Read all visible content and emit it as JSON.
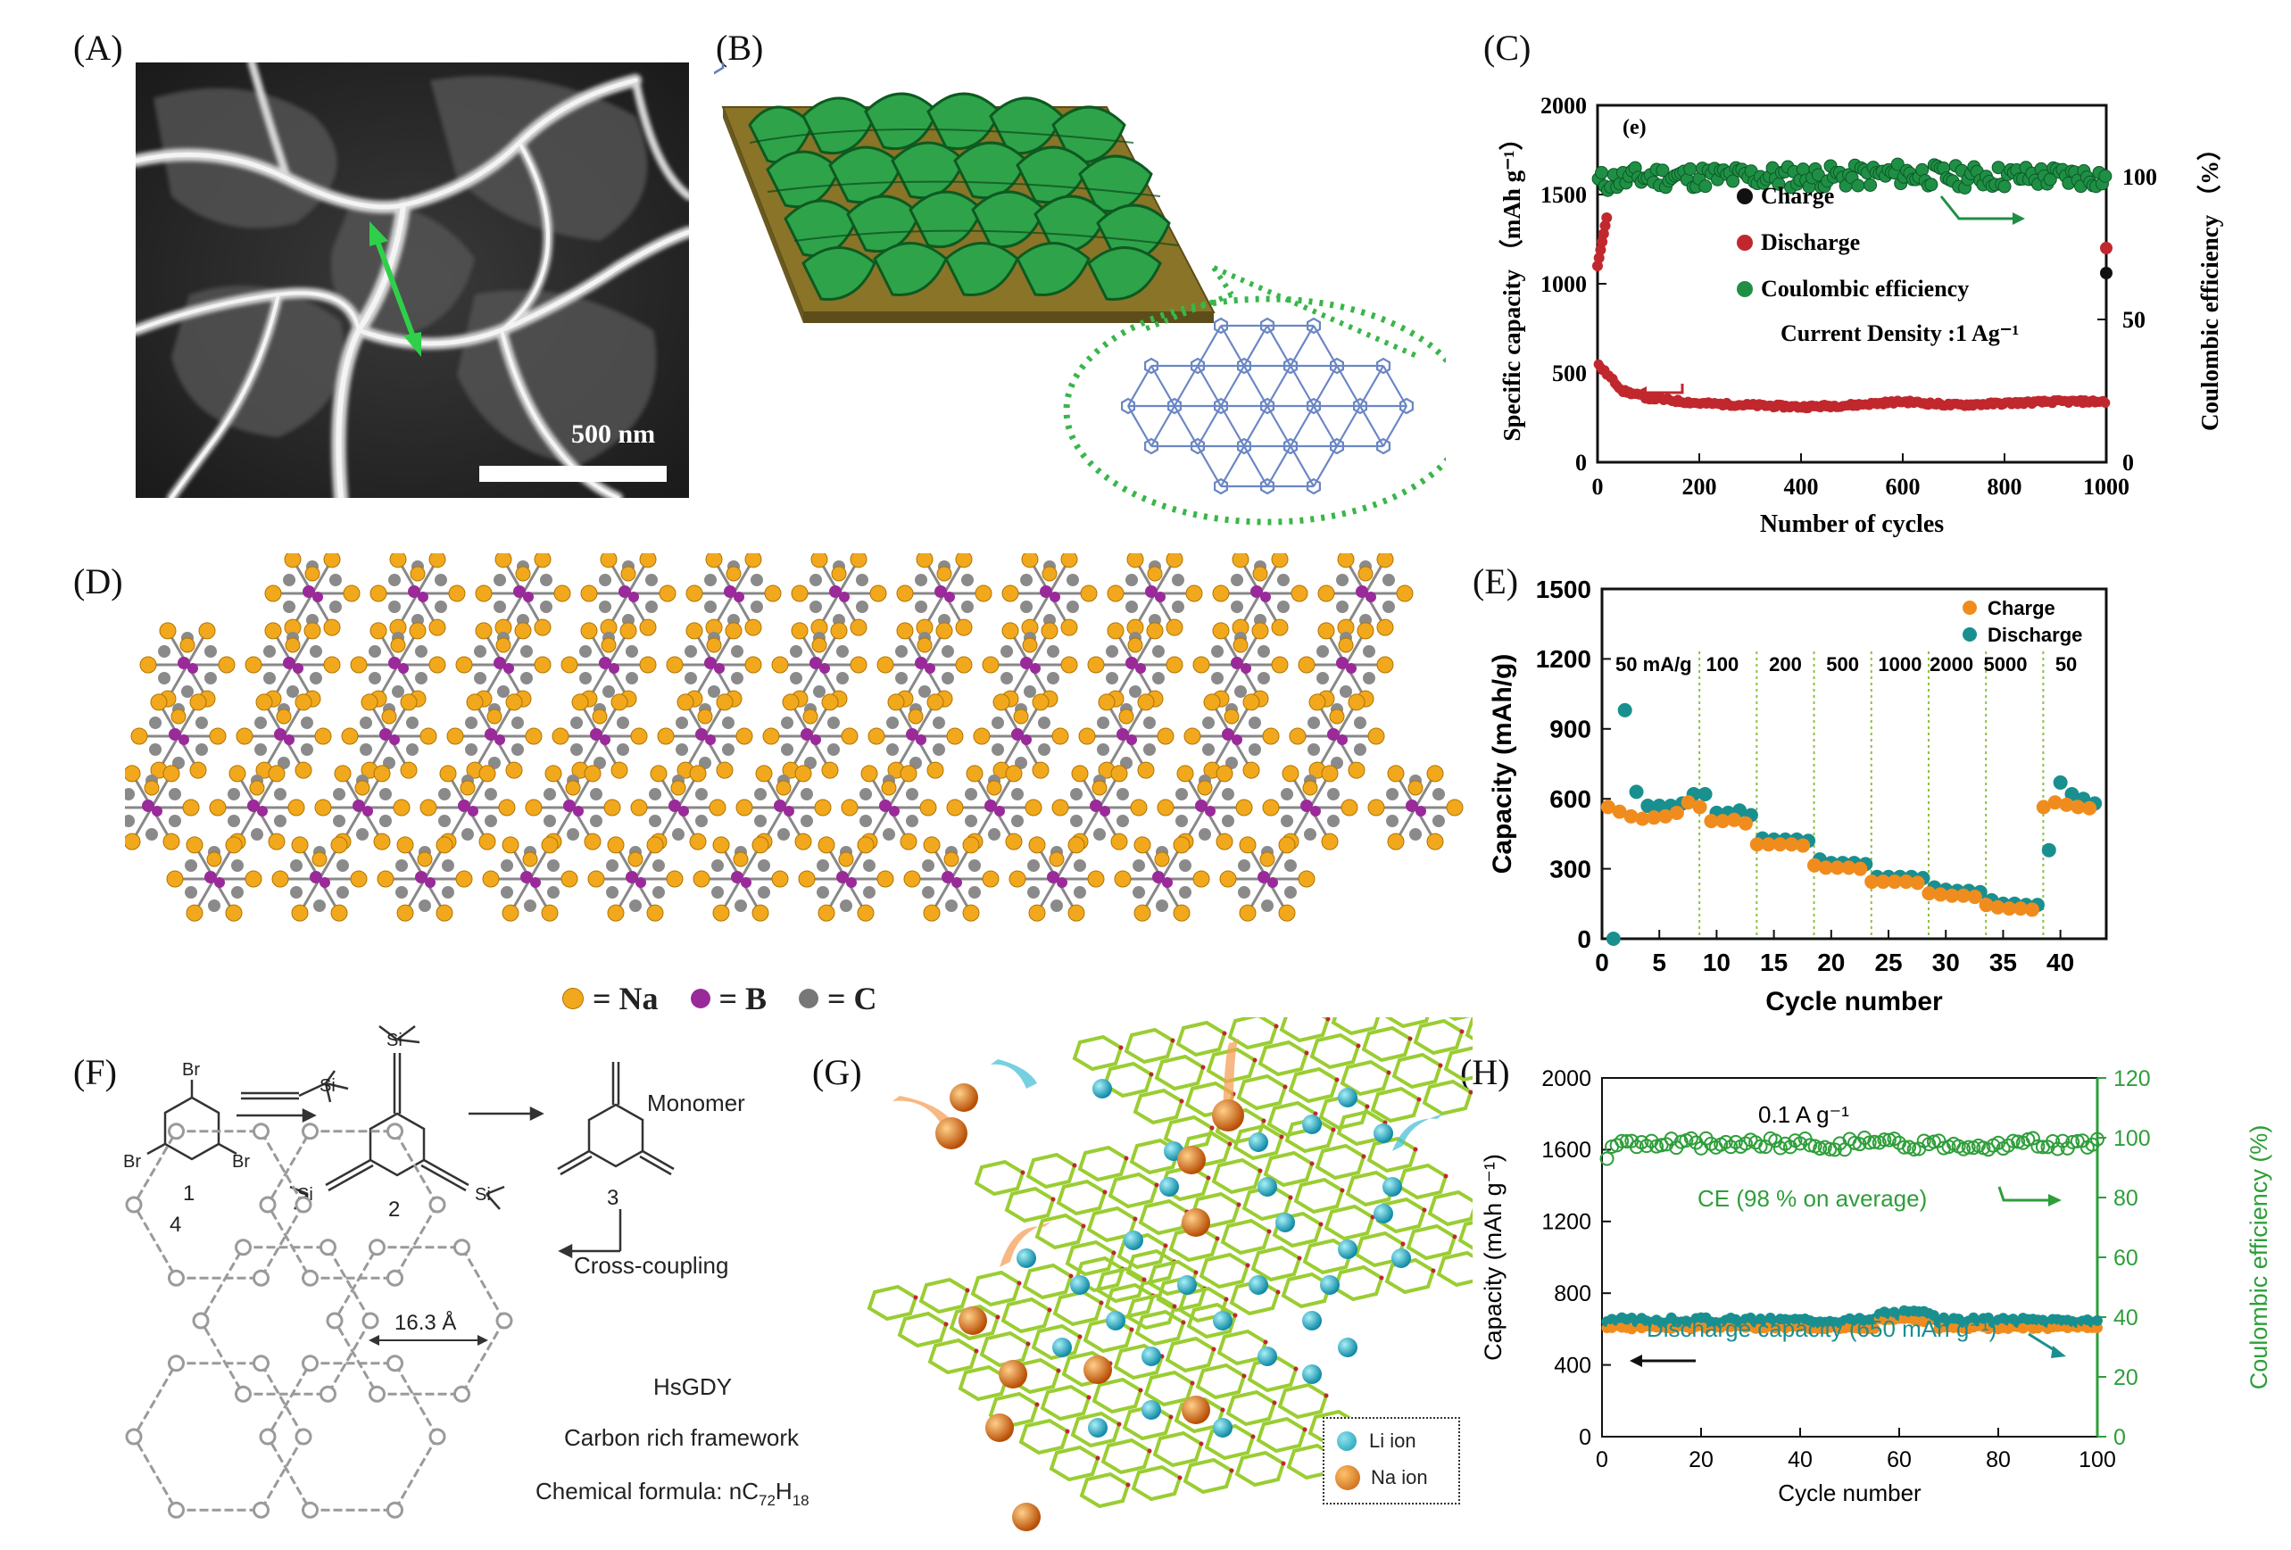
{
  "panels": {
    "A": {
      "label": "(A)",
      "scale_bar": "500 nm"
    },
    "B": {
      "label": "(B)"
    },
    "C": {
      "label": "(C)"
    },
    "D": {
      "label": "(D)",
      "legend": [
        "= Na",
        "= B",
        "= C"
      ]
    },
    "E": {
      "label": "(E)"
    },
    "F": {
      "label": "(F)",
      "labels": {
        "n1": "1",
        "n2": "2",
        "n3": "3",
        "n4": "4",
        "monomer": "Monomer",
        "cross": "Cross-coupling",
        "pore": "16.3 Å",
        "name": "HsGDY",
        "framework": "Carbon rich framework",
        "formula_prefix": "Chemical formula: nC",
        "c_sub": "72",
        "h": "H",
        "h_sub": "18",
        "br": "Br",
        "si": "Si"
      }
    },
    "G": {
      "label": "(G)",
      "legend": [
        "Li ion",
        "Na ion"
      ]
    },
    "H": {
      "label": "(H)"
    }
  },
  "colors": {
    "green_dark": "#1e8a3e",
    "red": "#c0282e",
    "black": "#111111",
    "orange": "#f08c1e",
    "teal": "#1a8f8f",
    "ce_green": "#2e9e3a",
    "gold": "#f2a81d",
    "purple": "#9a2a9a",
    "grey": "#777777"
  },
  "chart_data": [
    {
      "id": "C",
      "type": "scatter",
      "tag": "(e)",
      "xlabel": "Number of cycles",
      "ylabel": "Specific capacity （mAh g⁻¹）",
      "y2label": "Coulombic efficiency （%）",
      "xlim": [
        0,
        1000
      ],
      "ylim": [
        0,
        2000
      ],
      "y2lim": [
        0,
        125
      ],
      "xticks": [
        0,
        200,
        400,
        600,
        800,
        1000
      ],
      "yticks": [
        0,
        500,
        1000,
        1500,
        2000
      ],
      "y2ticks": [
        0,
        50,
        100
      ],
      "legend": [
        "Charge",
        "Discharge",
        "Coulombic efficiency"
      ],
      "annotation": "Current Density :1 Ag⁻¹",
      "series": [
        {
          "name": "Charge",
          "axis": "left",
          "x": [
            0,
            50,
            100,
            200,
            300,
            400,
            500,
            600,
            700,
            800,
            900,
            1000
          ],
          "y": [
            500,
            390,
            350,
            320,
            310,
            300,
            310,
            330,
            310,
            320,
            330,
            330
          ]
        },
        {
          "name": "Discharge",
          "axis": "left",
          "x": [
            0,
            50,
            100,
            200,
            300,
            400,
            500,
            600,
            700,
            800,
            900,
            1000
          ],
          "y": [
            550,
            400,
            360,
            330,
            320,
            310,
            320,
            340,
            320,
            330,
            340,
            340
          ]
        },
        {
          "name": "Coulombic efficiency",
          "axis": "right",
          "x": [
            0,
            50,
            100,
            200,
            300,
            400,
            500,
            600,
            700,
            800,
            900,
            1000
          ],
          "y": [
            98,
            99,
            100,
            100,
            100,
            100,
            100,
            101,
            100,
            100,
            100,
            100
          ]
        }
      ]
    },
    {
      "id": "E",
      "type": "scatter",
      "xlabel": "Cycle  number",
      "ylabel": "Capacity (mAh/g)",
      "xlim": [
        0,
        44
      ],
      "ylim": [
        0,
        1500
      ],
      "xticks": [
        0,
        5,
        10,
        15,
        20,
        25,
        30,
        35,
        40
      ],
      "yticks": [
        0,
        300,
        600,
        900,
        1200,
        1500
      ],
      "rate_labels": [
        "50 mA/g",
        "100",
        "200",
        "500",
        "1000",
        "2000",
        "5000",
        "50"
      ],
      "rate_label_x": [
        4.5,
        10.5,
        16,
        21,
        26,
        30.5,
        35.2,
        40.5
      ],
      "dividers": [
        8.5,
        13.5,
        18.5,
        23.5,
        28.5,
        33.5,
        38.5
      ],
      "legend": [
        "Charge",
        "Discharge"
      ],
      "series": [
        {
          "name": "Charge",
          "x": [
            1,
            2,
            3,
            4,
            5,
            6,
            7,
            8,
            9,
            10,
            11,
            12,
            13,
            14,
            15,
            16,
            17,
            18,
            19,
            20,
            21,
            22,
            23,
            24,
            25,
            26,
            27,
            28,
            29,
            30,
            31,
            32,
            33,
            34,
            35,
            36,
            37,
            38,
            39,
            40,
            41,
            42,
            43
          ],
          "y": [
            580,
            560,
            540,
            530,
            535,
            540,
            555,
            600,
            580,
            520,
            520,
            525,
            510,
            420,
            420,
            420,
            420,
            415,
            330,
            320,
            320,
            320,
            315,
            260,
            260,
            260,
            260,
            255,
            210,
            205,
            200,
            200,
            195,
            160,
            150,
            145,
            145,
            140,
            580,
            600,
            590,
            580,
            575
          ]
        },
        {
          "name": "Discharge",
          "x": [
            1,
            2,
            3,
            4,
            5,
            6,
            7,
            8,
            9,
            10,
            11,
            12,
            13,
            14,
            15,
            16,
            17,
            18,
            19,
            20,
            21,
            22,
            23,
            24,
            25,
            26,
            27,
            28,
            29,
            30,
            31,
            32,
            33,
            34,
            35,
            36,
            37,
            38,
            39,
            40,
            41,
            42,
            43
          ],
          "y": [
            0,
            980,
            630,
            570,
            570,
            570,
            580,
            620,
            620,
            540,
            540,
            550,
            530,
            430,
            425,
            425,
            425,
            420,
            340,
            325,
            325,
            325,
            320,
            265,
            265,
            265,
            265,
            260,
            220,
            210,
            205,
            205,
            200,
            165,
            150,
            150,
            145,
            145,
            380,
            670,
            620,
            600,
            580
          ]
        }
      ]
    },
    {
      "id": "H",
      "type": "scatter",
      "xlabel": "Cycle number",
      "ylabel": "Capacity (mAh g⁻¹)",
      "y2label": "Coulombic efficiency (%)",
      "xlim": [
        0,
        100
      ],
      "ylim": [
        0,
        2000
      ],
      "y2lim": [
        0,
        120
      ],
      "xticks": [
        0,
        20,
        40,
        60,
        80,
        100
      ],
      "yticks": [
        0,
        400,
        800,
        1200,
        1600,
        2000
      ],
      "y2ticks": [
        0,
        20,
        40,
        60,
        80,
        100,
        120
      ],
      "annotations": [
        "0.1 A g⁻¹",
        "CE (98 % on average)",
        "Discharge capacity (650 mAh g⁻¹)"
      ],
      "series": [
        {
          "name": "Charge",
          "axis": "left",
          "y_mean": 610
        },
        {
          "name": "Discharge",
          "axis": "left",
          "y_mean": 650
        },
        {
          "name": "CE",
          "axis": "right",
          "y_mean": 98
        }
      ]
    }
  ]
}
